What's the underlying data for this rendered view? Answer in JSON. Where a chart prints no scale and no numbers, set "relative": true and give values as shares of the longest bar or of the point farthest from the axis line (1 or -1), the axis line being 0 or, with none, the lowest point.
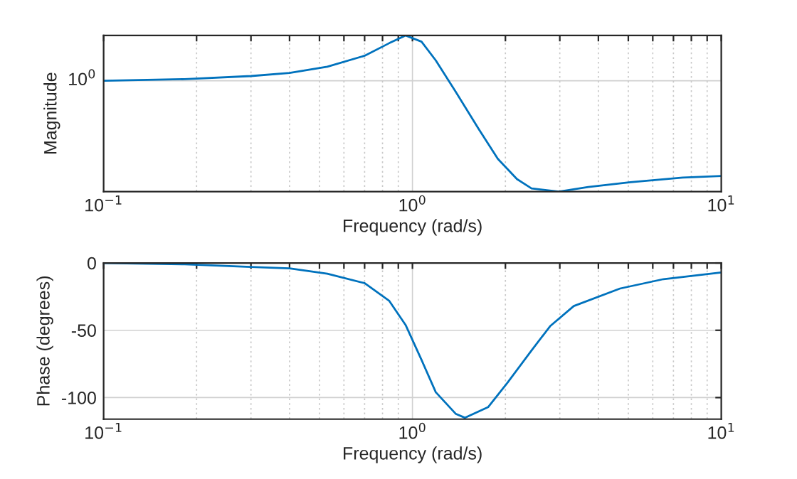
{
  "chart_data": [
    {
      "type": "line",
      "xlabel": "Frequency (rad/s)",
      "ylabel": "Magnitude",
      "log": "x",
      "grid": true,
      "line_style": "solid",
      "relative": true,
      "annotations": [
        "10$^{0}$"
      ],
      "ref_lines": [
        {
          "axis": "y",
          "value": 0.71,
          "color": "#d0d0d0"
        },
        {
          "axis": "x",
          "value": 1,
          "color": "#d0d0d0"
        }
      ],
      "x": [
        0.1,
        0.183,
        0.3,
        0.4,
        0.53,
        0.7,
        0.84,
        0.95,
        1.07,
        1.19,
        1.38,
        1.64,
        1.89,
        2.18,
        2.43,
        2.98,
        3.71,
        5.08,
        7.5,
        10
      ],
      "series": [
        {
          "color": "#0072bd",
          "values": [
            0.71,
            0.72,
            0.74,
            0.76,
            0.8,
            0.87,
            0.95,
            1,
            0.96,
            0.84,
            0.64,
            0.4,
            0.21,
            0.08,
            0.02,
            0,
            0.03,
            0.06,
            0.09,
            0.1
          ]
        }
      ],
      "xlim": [
        0.1,
        10
      ],
      "xticks": [
        {
          "value": 0.1,
          "label": "10$^{−1}$"
        },
        {
          "value": 0.2,
          "label": null
        },
        {
          "value": 0.3,
          "label": null
        },
        {
          "value": 0.4,
          "label": null
        },
        {
          "value": 0.5,
          "label": null
        },
        {
          "value": 0.6,
          "label": null
        },
        {
          "value": 0.7,
          "label": null
        },
        {
          "value": 0.8,
          "label": null
        },
        {
          "value": 0.9,
          "label": null
        },
        {
          "value": 1,
          "label": "10$^{0}$"
        },
        {
          "value": 2,
          "label": null
        },
        {
          "value": 3,
          "label": null
        },
        {
          "value": 4,
          "label": null
        },
        {
          "value": 5,
          "label": null
        },
        {
          "value": 6,
          "label": null
        },
        {
          "value": 7,
          "label": null
        },
        {
          "value": 8,
          "label": null
        },
        {
          "value": 9,
          "label": null
        },
        {
          "value": 10,
          "label": "10$^{1}$"
        }
      ]
    },
    {
      "type": "line",
      "xlabel": "Frequency (rad/s)",
      "ylabel": "Phase (degrees)",
      "log": "x",
      "grid": true,
      "line_style": "solid",
      "x": [
        0.1,
        0.183,
        0.3,
        0.4,
        0.53,
        0.7,
        0.84,
        0.95,
        1.07,
        1.19,
        1.38,
        1.48,
        1.76,
        2.03,
        2.43,
        2.79,
        3.33,
        4.7,
        6.5,
        10
      ],
      "series": [
        {
          "color": "#0072bd",
          "values": [
            0,
            -1,
            -3,
            -4,
            -8,
            -15,
            -28,
            -46,
            -72,
            -96,
            -112,
            -115,
            -107,
            -89,
            -65,
            -47,
            -32,
            -19,
            -12,
            -7
          ]
        }
      ],
      "xlim": [
        0.1,
        10
      ],
      "ylim": [
        -116,
        0
      ],
      "xticks": [
        {
          "value": 0.1,
          "label": "10$^{−1}$"
        },
        {
          "value": 0.2,
          "label": null
        },
        {
          "value": 0.3,
          "label": null
        },
        {
          "value": 0.4,
          "label": null
        },
        {
          "value": 0.5,
          "label": null
        },
        {
          "value": 0.6,
          "label": null
        },
        {
          "value": 0.7,
          "label": null
        },
        {
          "value": 0.8,
          "label": null
        },
        {
          "value": 0.9,
          "label": null
        },
        {
          "value": 1,
          "label": "10$^{0}$"
        },
        {
          "value": 2,
          "label": null
        },
        {
          "value": 3,
          "label": null
        },
        {
          "value": 4,
          "label": null
        },
        {
          "value": 5,
          "label": null
        },
        {
          "value": 6,
          "label": null
        },
        {
          "value": 7,
          "label": null
        },
        {
          "value": 8,
          "label": null
        },
        {
          "value": 9,
          "label": null
        },
        {
          "value": 10,
          "label": "10$^{1}$"
        }
      ],
      "yticks": [
        -100,
        -50,
        0
      ]
    }
  ]
}
